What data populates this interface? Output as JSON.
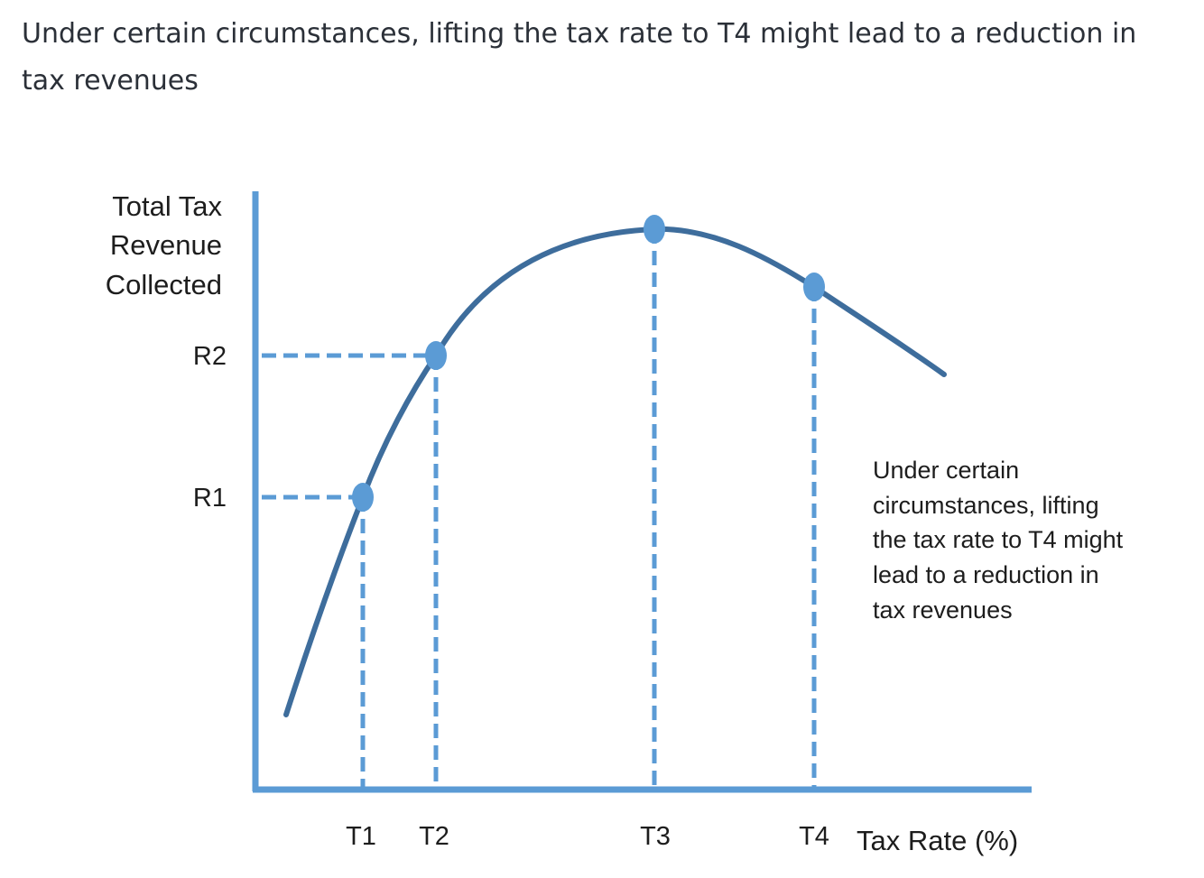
{
  "caption": "Under certain circumstances, lifting the tax rate to T4 might lead to a reduction in tax revenues",
  "colors": {
    "axis": "#5b9bd5",
    "curve": "#3e6d9c",
    "guides": "#5b9bd5",
    "points": "#5b9bd5",
    "text": "#1d1d1d"
  },
  "diagram": {
    "y_axis_label": [
      "Total Tax",
      "Revenue",
      "Collected"
    ],
    "x_axis_label": "Tax Rate (%)",
    "revenue_ticks": [
      {
        "label": "R2"
      },
      {
        "label": "R1"
      }
    ],
    "rate_ticks": [
      {
        "label": "T1"
      },
      {
        "label": "T2"
      },
      {
        "label": "T3"
      },
      {
        "label": "T4"
      }
    ],
    "annotation": [
      "Under certain",
      "circumstances, lifting",
      "the tax rate to T4 might",
      "lead to a reduction in",
      "tax revenues"
    ]
  }
}
